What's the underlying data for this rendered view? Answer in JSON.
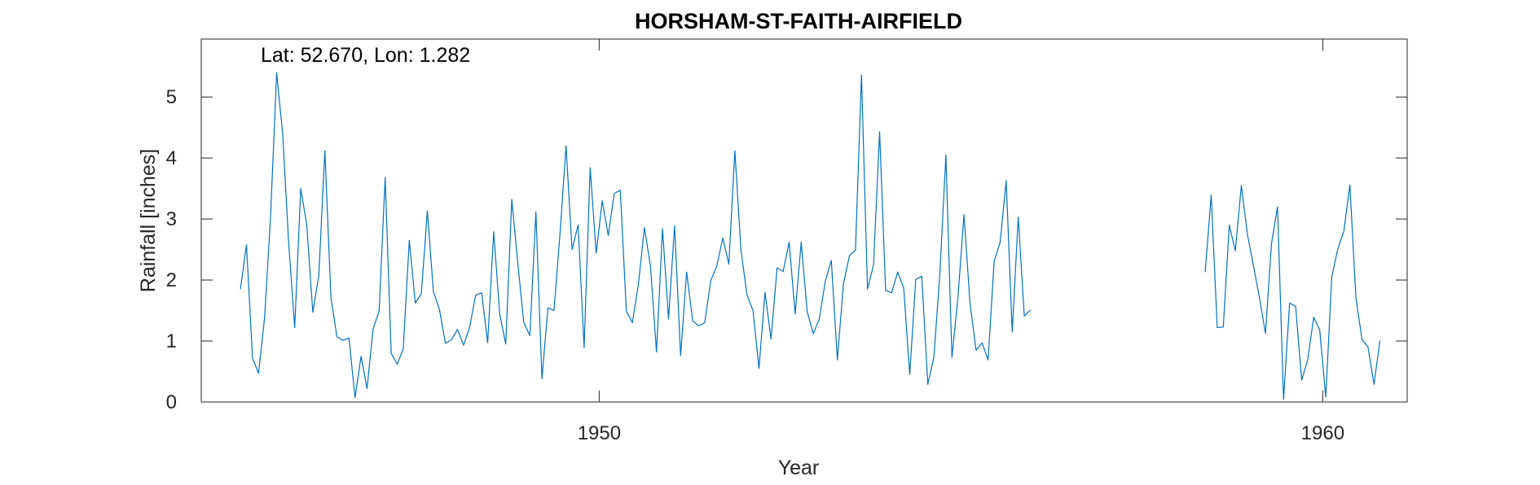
{
  "chart_data": {
    "type": "line",
    "title": "HORSHAM-ST-FAITH-AIRFIELD",
    "annotation": "Lat: 52.670, Lon: 1.282",
    "xlabel": "Year",
    "ylabel": "Rainfall [inches]",
    "xlim": [
      1944.5,
      1961.167
    ],
    "ylim": [
      0,
      5.95
    ],
    "xticks": [
      1950,
      1960
    ],
    "xtick_labels": [
      "1950",
      "1960"
    ],
    "yticks": [
      0,
      1,
      2,
      3,
      4,
      5
    ],
    "ytick_labels": [
      "0",
      "1",
      "2",
      "3",
      "4",
      "5"
    ],
    "grid": false,
    "line_color": "#0072BD",
    "series": [
      {
        "x_start": 1945.0417,
        "step": 0.0833333,
        "values": [
          1.85,
          2.58,
          0.72,
          0.47,
          1.38,
          3.05,
          5.4,
          4.4,
          2.6,
          1.22,
          3.5,
          2.9,
          1.47,
          2.08,
          4.12,
          1.72,
          1.07,
          1.01,
          1.05,
          0.07,
          0.75,
          0.22,
          1.2,
          1.49,
          3.68,
          0.8,
          0.62,
          0.87,
          2.65,
          1.62,
          1.78,
          3.13,
          1.81,
          1.52,
          0.96,
          1.02,
          1.19,
          0.93,
          1.22,
          1.75,
          1.79,
          0.97,
          2.79,
          1.44,
          0.95,
          3.32,
          2.27,
          1.3,
          1.09,
          3.12,
          0.38,
          1.54,
          1.5,
          2.76,
          4.2,
          2.5,
          2.9,
          0.89,
          3.84,
          2.44,
          3.3,
          2.73,
          3.42,
          3.47,
          1.49,
          1.3,
          1.93,
          2.86,
          2.23,
          0.82,
          2.84,
          1.36,
          2.89,
          0.76,
          2.13,
          1.33,
          1.25,
          1.3,
          1.99,
          2.23,
          2.69,
          2.26,
          4.12,
          2.5,
          1.76,
          1.5,
          0.55,
          1.8,
          1.03,
          2.2,
          2.14,
          2.62,
          1.44,
          2.62,
          1.48,
          1.12,
          1.36,
          1.98,
          2.32,
          0.69,
          1.93,
          2.4,
          2.49,
          5.36,
          1.85,
          2.25,
          4.43,
          1.83,
          1.79,
          2.13,
          1.87,
          0.45,
          2.01,
          2.06,
          0.29,
          0.73,
          2.1,
          4.05,
          0.73,
          1.72,
          3.07,
          1.62,
          0.85,
          0.97,
          0.69,
          2.3,
          2.62,
          3.63,
          1.15,
          3.03,
          1.41,
          1.51,
          null,
          null,
          null,
          null,
          null,
          null,
          null,
          null,
          null,
          null,
          null,
          null,
          null,
          null,
          null,
          null,
          null,
          null,
          null,
          null,
          null,
          null,
          null,
          null,
          null,
          null,
          null,
          null,
          2.13,
          3.39,
          1.22,
          1.23,
          2.9,
          2.48,
          3.55,
          2.75,
          2.24,
          1.71,
          1.12,
          2.6,
          3.2,
          0.04,
          1.62,
          1.57,
          0.36,
          0.69,
          1.39,
          1.18,
          0.08,
          2.05,
          2.51,
          2.8,
          3.56,
          1.71,
          1.03,
          0.9,
          0.29,
          1.01
        ]
      }
    ]
  }
}
